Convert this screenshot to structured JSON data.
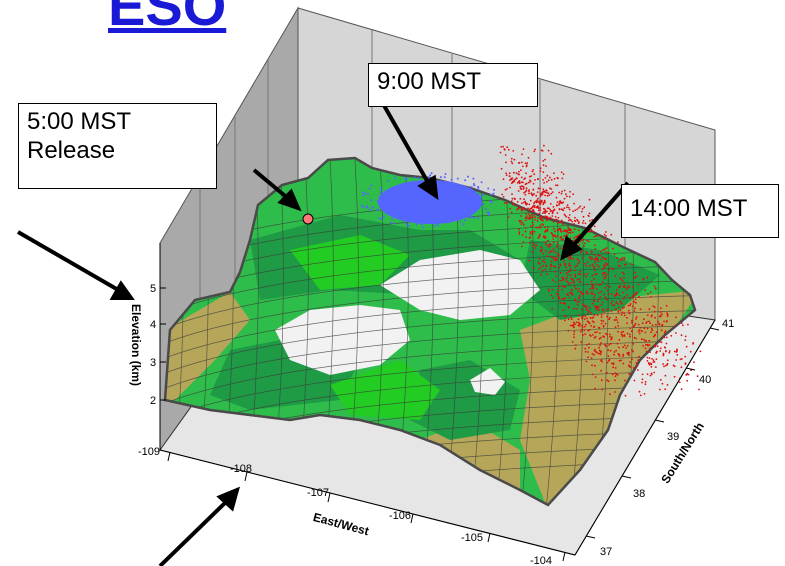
{
  "header": {
    "title_fragment": "ESO"
  },
  "callouts": {
    "release": {
      "line1": "5:00 MST",
      "line2": "Release"
    },
    "t9": "9:00 MST",
    "t14": "14:00 MST"
  },
  "axes": {
    "elevation": {
      "label": "Elevation (km)",
      "ticks": [
        "2",
        "3",
        "4",
        "5"
      ]
    },
    "east_west": {
      "label": "East/West",
      "ticks": [
        "-109",
        "-108",
        "-107",
        "-106",
        "-105",
        "-104"
      ]
    },
    "south_north": {
      "label": "South/North",
      "ticks": [
        "37",
        "38",
        "39",
        "40",
        "41"
      ]
    }
  },
  "colors": {
    "terrain_green": "#2ebd4a",
    "terrain_dark_green": "#1f9a45",
    "terrain_bright_green": "#22cc22",
    "terrain_tan": "#b5a65a",
    "terrain_white": "#f2f2f2",
    "plume_9": "#5566ff",
    "plume_14": "#dd1111",
    "release_marker": "#ff7777",
    "link": "#1a1ad6",
    "wall": "#a9a9a9",
    "floor": "#e6e6e6"
  }
}
